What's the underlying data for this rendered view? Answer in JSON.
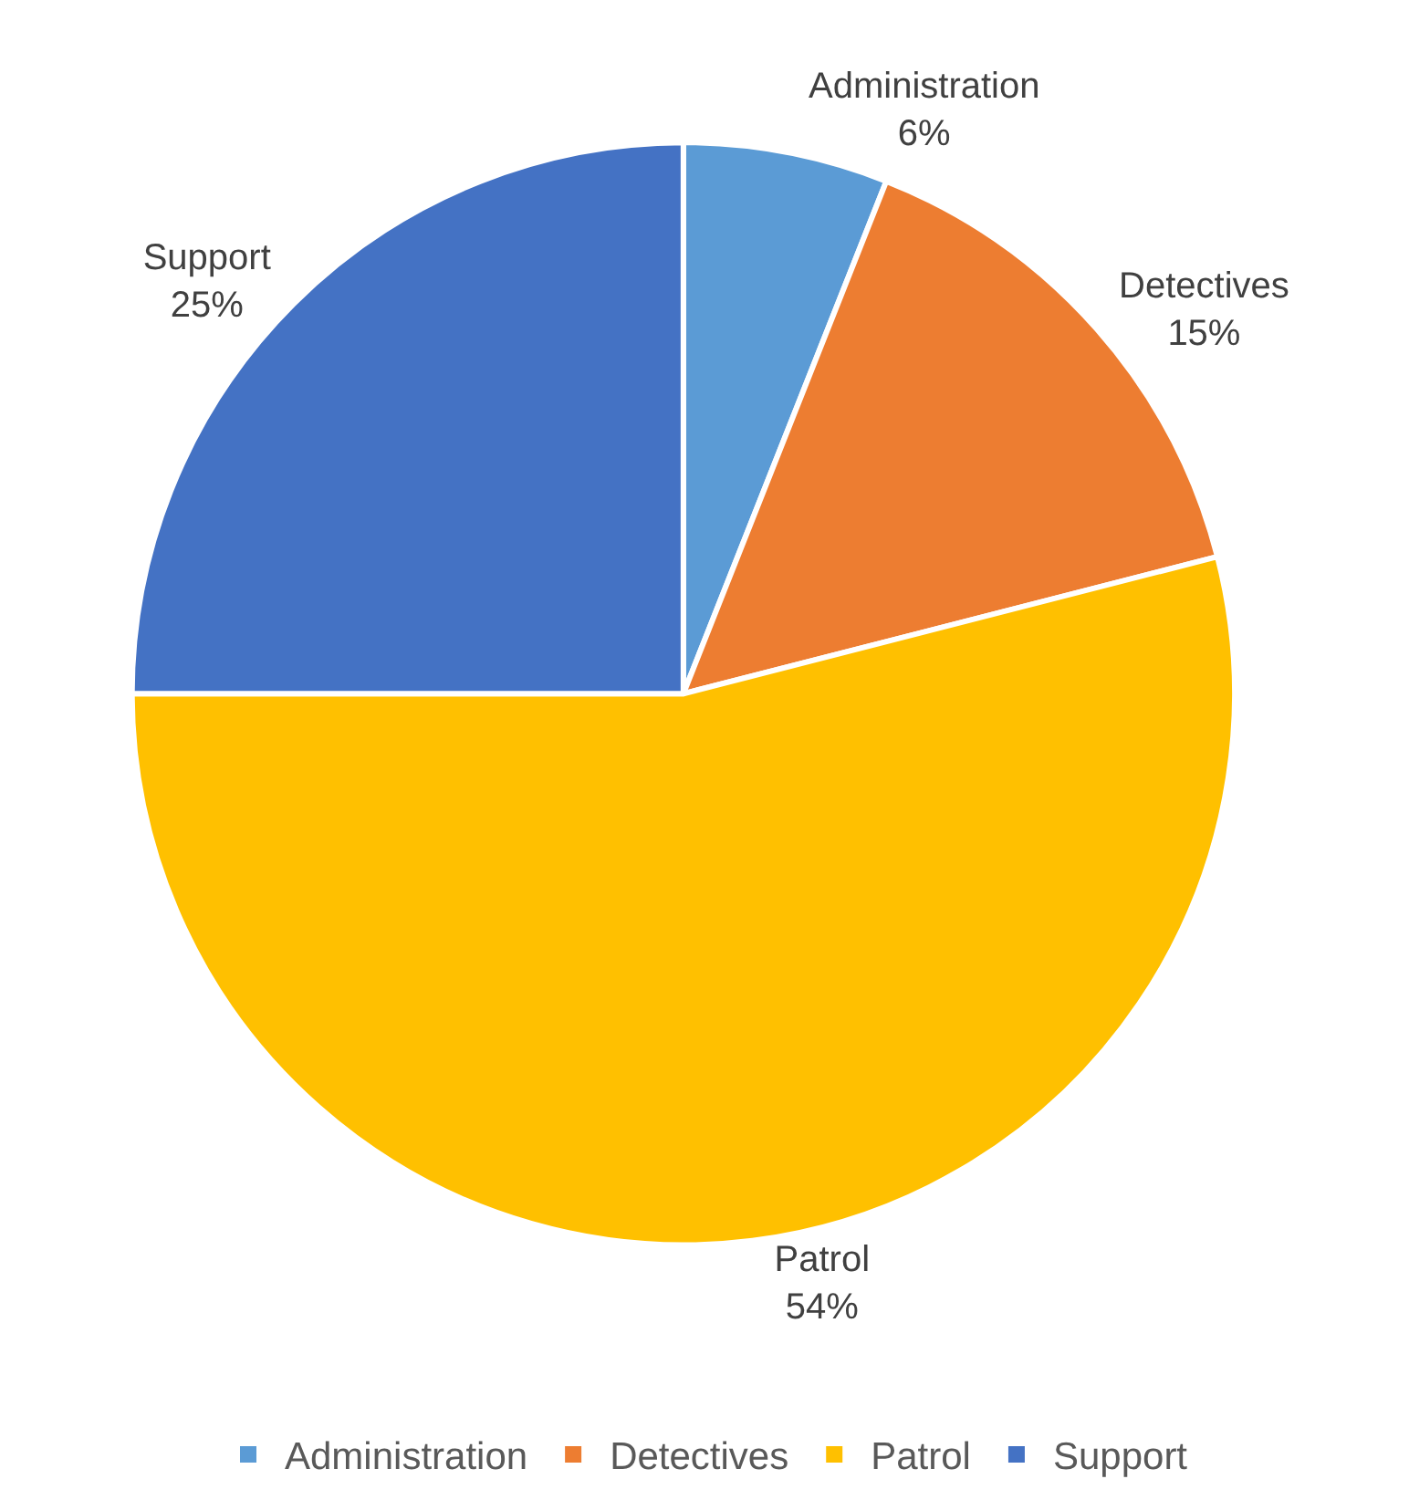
{
  "chart_data": {
    "type": "pie",
    "categories": [
      "Administration",
      "Detectives",
      "Patrol",
      "Support"
    ],
    "values": [
      6,
      15,
      54,
      25
    ],
    "colors": [
      "#5b9bd5",
      "#ed7d31",
      "#ffc000",
      "#4472c4"
    ],
    "value_labels": [
      "6%",
      "15%",
      "54%",
      "25%"
    ],
    "legend": "bottom"
  }
}
